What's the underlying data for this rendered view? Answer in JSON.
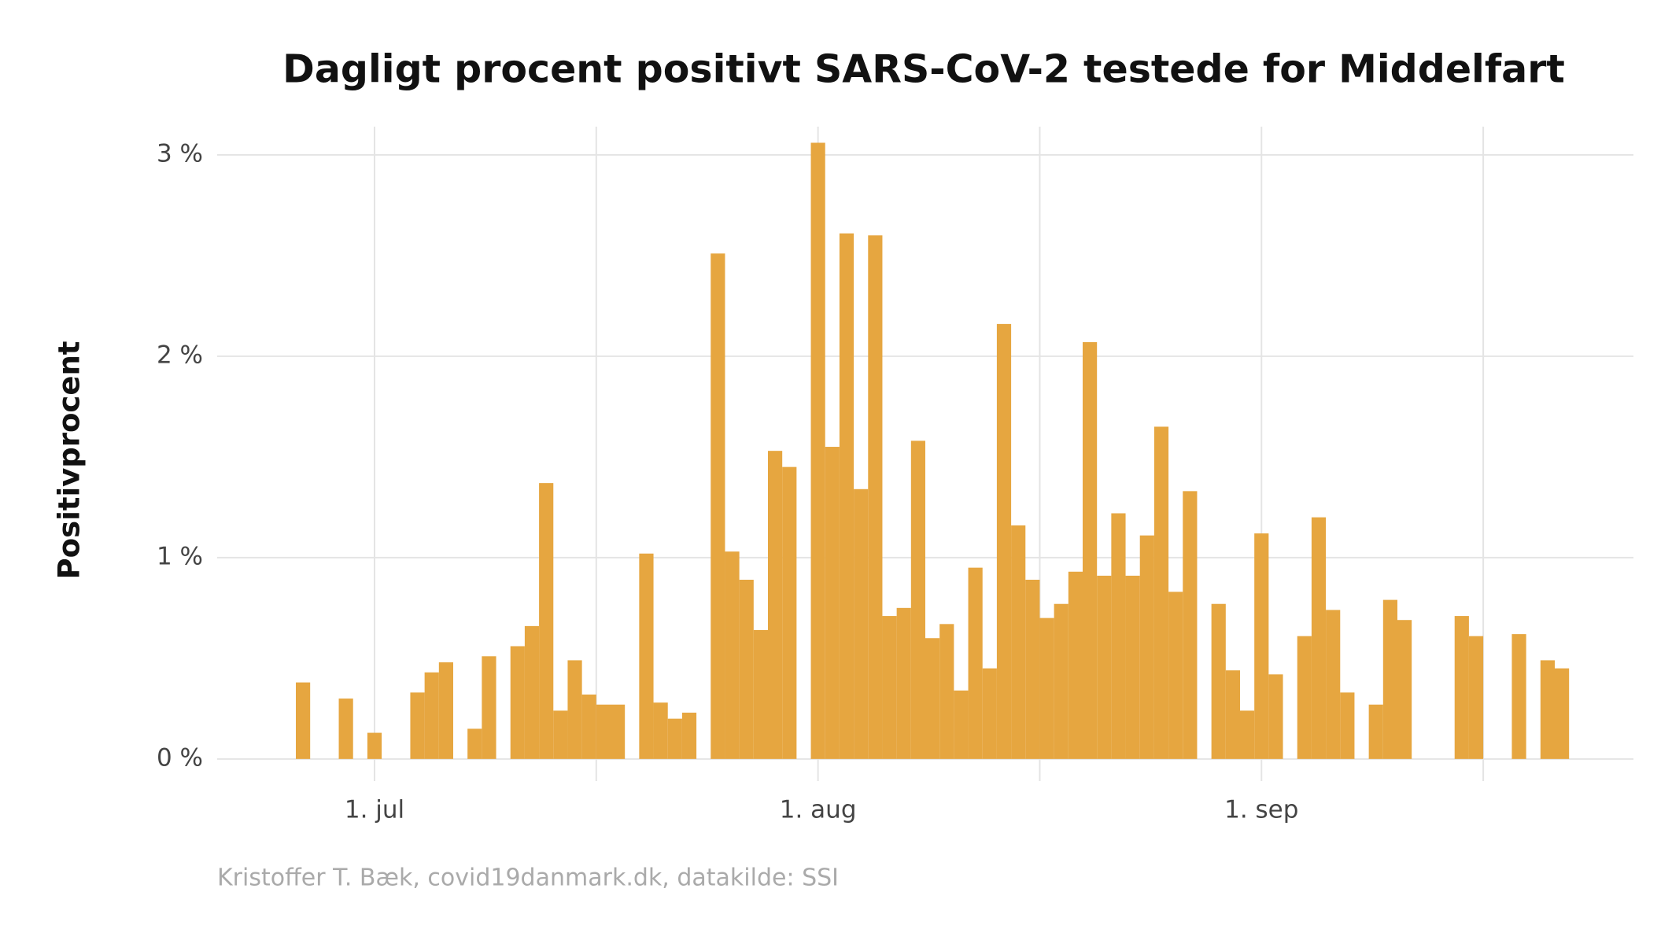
{
  "chart_data": {
    "type": "bar",
    "title": "Dagligt procent positivt SARS-CoV-2 testede for Middelfart",
    "y_label": "Positivprocent",
    "caption": "Kristoffer T. Bæk, covid19danmark.dk, datakilde: SSI",
    "color": "#e5a33a",
    "grid": true,
    "x": [
      "06-25",
      "06-26",
      "06-27",
      "06-28",
      "06-29",
      "06-30",
      "07-01",
      "07-02",
      "07-03",
      "07-04",
      "07-05",
      "07-06",
      "07-07",
      "07-08",
      "07-09",
      "07-10",
      "07-11",
      "07-12",
      "07-13",
      "07-14",
      "07-15",
      "07-16",
      "07-17",
      "07-18",
      "07-19",
      "07-20",
      "07-21",
      "07-22",
      "07-23",
      "07-24",
      "07-25",
      "07-26",
      "07-27",
      "07-28",
      "07-29",
      "07-30",
      "07-31",
      "08-01",
      "08-02",
      "08-03",
      "08-04",
      "08-05",
      "08-06",
      "08-07",
      "08-08",
      "08-09",
      "08-10",
      "08-11",
      "08-12",
      "08-13",
      "08-14",
      "08-15",
      "08-16",
      "08-17",
      "08-18",
      "08-19",
      "08-20",
      "08-21",
      "08-22",
      "08-23",
      "08-24",
      "08-25",
      "08-26",
      "08-27",
      "08-28",
      "08-29",
      "08-30",
      "08-31",
      "09-01",
      "09-02",
      "09-03",
      "09-04",
      "09-05",
      "09-06",
      "09-07",
      "09-08",
      "09-09",
      "09-10",
      "09-11",
      "09-12",
      "09-13",
      "09-14",
      "09-15",
      "09-16",
      "09-17",
      "09-18",
      "09-19",
      "09-20",
      "09-21",
      "09-22"
    ],
    "values": [
      0,
      0.38,
      0,
      0,
      0.3,
      0,
      0.13,
      0,
      0,
      0.33,
      0.43,
      0.48,
      0,
      0.15,
      0.51,
      0,
      0.56,
      0.66,
      1.37,
      0.24,
      0.49,
      0.32,
      0.27,
      0.27,
      0,
      1.02,
      0.28,
      0.2,
      0.23,
      0,
      2.51,
      1.03,
      0.89,
      0.64,
      1.53,
      1.45,
      0,
      3.06,
      1.55,
      2.61,
      1.34,
      2.6,
      0.71,
      0.75,
      1.58,
      0.6,
      0.67,
      0.34,
      0.95,
      0.45,
      2.16,
      1.16,
      0.89,
      0.7,
      0.77,
      0.93,
      2.07,
      0.91,
      1.22,
      0.91,
      1.11,
      1.65,
      0.83,
      1.33,
      0,
      0.77,
      0.44,
      0.24,
      1.12,
      0.42,
      0,
      0.61,
      1.2,
      0.74,
      0.33,
      0,
      0.27,
      0.79,
      0.69,
      0,
      0,
      0,
      0.71,
      0.61,
      0,
      0,
      0.62,
      0,
      0.49,
      0.45
    ],
    "xlim": [
      "06-20",
      "09-27"
    ],
    "xticks": [
      {
        "value": "07-01",
        "label": "1. jul"
      },
      {
        "value": "08-01",
        "label": "1. aug"
      },
      {
        "value": "09-01",
        "label": "1. sep"
      }
    ],
    "minor_xticks": [
      "07-16",
      "08-16",
      "09-16"
    ],
    "ylim": [
      -0.11,
      3.14
    ],
    "yticks": [
      {
        "value": 0,
        "label": "0 %"
      },
      {
        "value": 1,
        "label": "1 %"
      },
      {
        "value": 2,
        "label": "2 %"
      },
      {
        "value": 3,
        "label": "3 %"
      }
    ]
  }
}
